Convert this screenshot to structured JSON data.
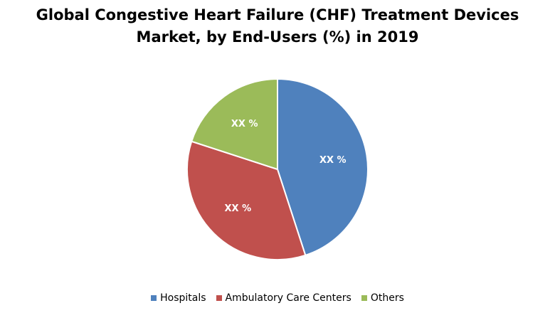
{
  "chart_data": {
    "type": "pie",
    "title_line1": "Global Congestive Heart Failure (CHF) Treatment Devices",
    "title_line2": "Market, by End-Users (%) in 2019",
    "categories": [
      "Hospitals",
      "Ambulatory Care Centers",
      "Others"
    ],
    "values": [
      45,
      35,
      20
    ],
    "labels": [
      "XX %",
      "XX %",
      "XX %"
    ],
    "colors": [
      "#4f81bd",
      "#c0504d",
      "#9bbb59"
    ],
    "legend_position": "bottom"
  }
}
